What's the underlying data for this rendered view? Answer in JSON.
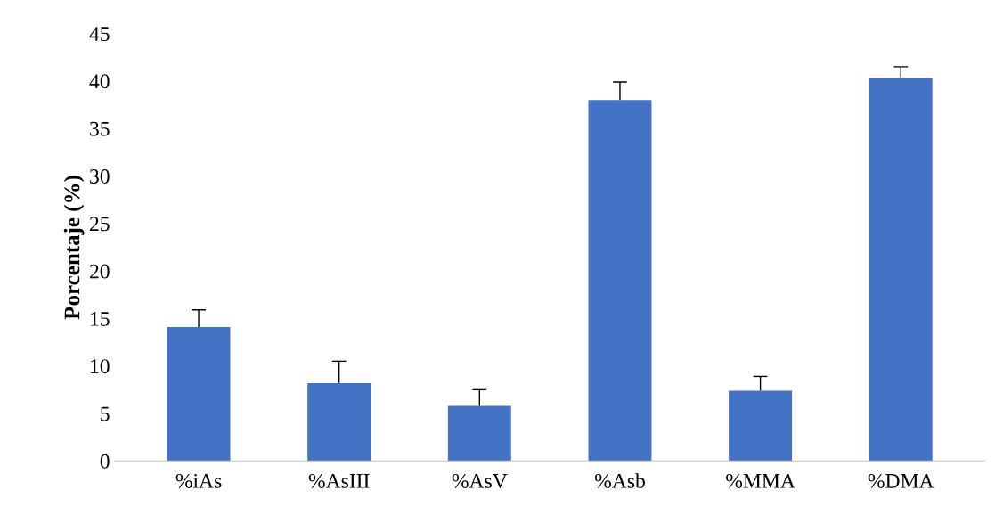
{
  "chart_data": {
    "type": "bar",
    "ylabel": "Porcentaje (%)",
    "categories": [
      "%iAs",
      "%AsIII",
      "%AsV",
      "%Asb",
      "%MMA",
      "%DMA"
    ],
    "values": [
      14.1,
      8.2,
      5.8,
      38.0,
      7.4,
      40.3
    ],
    "errors": [
      [
        14.1,
        15.9
      ],
      [
        8.2,
        10.5
      ],
      [
        5.8,
        7.5
      ],
      [
        38.0,
        39.9
      ],
      [
        7.4,
        8.9
      ],
      [
        40.3,
        41.5
      ]
    ],
    "color": "#4472c4",
    "ylim": [
      0,
      45
    ],
    "yticks": [
      0,
      5,
      10,
      15,
      20,
      25,
      30,
      35,
      40,
      45
    ],
    "grid": false,
    "legend": false
  }
}
